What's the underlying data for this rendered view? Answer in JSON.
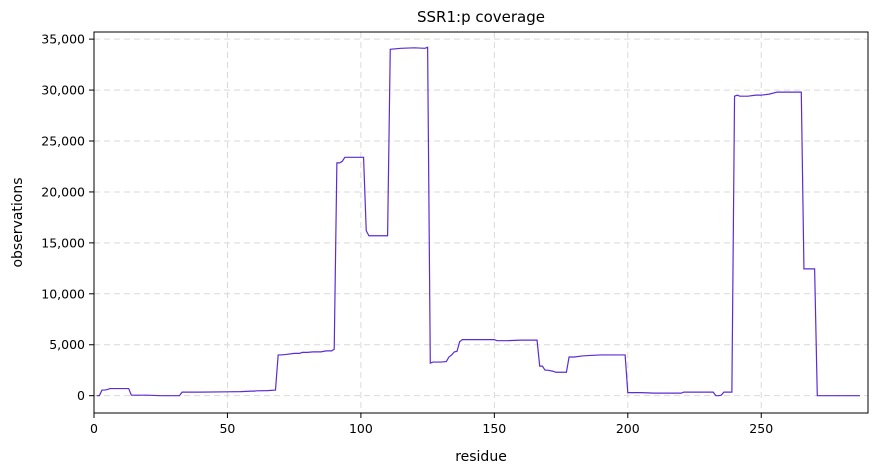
{
  "chart_data": {
    "type": "line",
    "title": "SSR1:p coverage",
    "xlabel": "residue",
    "ylabel": "observations",
    "xlim": [
      0,
      290
    ],
    "ylim": [
      -1700,
      35700
    ],
    "x_ticks": [
      0,
      50,
      100,
      150,
      200,
      250
    ],
    "y_ticks": [
      0,
      5000,
      10000,
      15000,
      20000,
      25000,
      30000,
      35000
    ],
    "x_tick_labels": [
      "0",
      "50",
      "100",
      "150",
      "200",
      "250"
    ],
    "y_tick_labels": [
      "0",
      "5,000",
      "10,000",
      "15,000",
      "20,000",
      "25,000",
      "30,000",
      "35,000"
    ],
    "grid": true,
    "line_color": "#5b2bd6",
    "series": [
      {
        "x": [
          1,
          2,
          3,
          4,
          5,
          6,
          7,
          8,
          9,
          10,
          11,
          12,
          13,
          14,
          20,
          25,
          32,
          33,
          40,
          50,
          55,
          59,
          60,
          61,
          65,
          68,
          69,
          70,
          72,
          75,
          77,
          78,
          80,
          82,
          85,
          87,
          89,
          90,
          91,
          92,
          93,
          94,
          95,
          100,
          101,
          102,
          103,
          104,
          108,
          109,
          110,
          111,
          115,
          120,
          124,
          125,
          126,
          127,
          130,
          132,
          133,
          134,
          135,
          136,
          137,
          138,
          140,
          145,
          150,
          151,
          152,
          155,
          160,
          166,
          167,
          168,
          169,
          170,
          172,
          173,
          174,
          175,
          176,
          177,
          178,
          179,
          180,
          183,
          186,
          190,
          194,
          199,
          200,
          201,
          205,
          210,
          215,
          220,
          221,
          225,
          230,
          232,
          233,
          234,
          235,
          236,
          237,
          239,
          240,
          241,
          242,
          245,
          248,
          250,
          253,
          256,
          260,
          265,
          266,
          267,
          270,
          271,
          280,
          287
        ],
        "y": [
          0,
          0,
          550,
          550,
          600,
          700,
          700,
          700,
          700,
          700,
          700,
          700,
          700,
          50,
          50,
          0,
          0,
          350,
          350,
          380,
          400,
          450,
          450,
          480,
          500,
          550,
          4000,
          4000,
          4050,
          4150,
          4150,
          4250,
          4250,
          4300,
          4300,
          4400,
          4400,
          4550,
          22850,
          22850,
          23000,
          23400,
          23400,
          23400,
          23400,
          16200,
          15700,
          15700,
          15700,
          15700,
          15700,
          34000,
          34100,
          34150,
          34100,
          34200,
          3200,
          3300,
          3300,
          3350,
          3800,
          4000,
          4300,
          4350,
          5300,
          5500,
          5500,
          5500,
          5500,
          5400,
          5400,
          5400,
          5450,
          5450,
          2900,
          2900,
          2500,
          2500,
          2400,
          2300,
          2300,
          2300,
          2300,
          2300,
          3800,
          3800,
          3800,
          3900,
          3950,
          4000,
          4000,
          4000,
          300,
          300,
          300,
          250,
          250,
          250,
          350,
          350,
          350,
          350,
          0,
          0,
          50,
          350,
          350,
          350,
          29400,
          29500,
          29400,
          29400,
          29500,
          29500,
          29600,
          29800,
          29800,
          29800,
          12450,
          12450,
          12450,
          0,
          0,
          0
        ]
      }
    ]
  }
}
